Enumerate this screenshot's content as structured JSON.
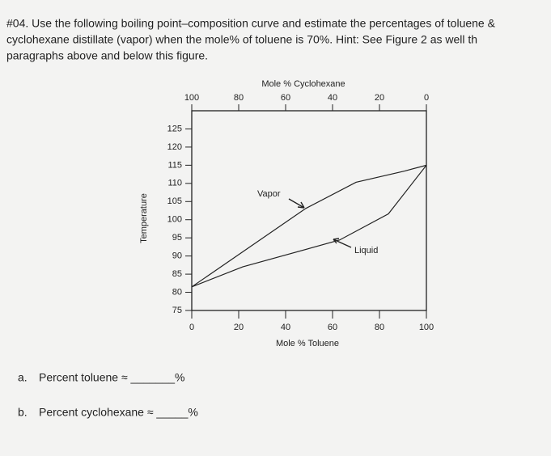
{
  "question": {
    "lines": [
      "#04. Use the following boiling point–composition curve and estimate the percentages of toluene &",
      "cyclohexane distillate (vapor) when the mole% of toluene is 70%.   Hint: See Figure 2 as well th",
      "paragraphs above and below this figure."
    ]
  },
  "chart_data": {
    "type": "line",
    "x_label": "Mole % Toluene",
    "x2_label": "Mole % Cyclohexane",
    "y_label": "Temperature",
    "xlim": [
      0,
      100
    ],
    "xticks": [
      0,
      20,
      40,
      60,
      80,
      100
    ],
    "x2lim": [
      100,
      0
    ],
    "x2ticks": [
      100,
      80,
      60,
      40,
      20,
      0
    ],
    "ylim": [
      75,
      130
    ],
    "yticks": [
      75,
      80,
      85,
      90,
      95,
      100,
      105,
      110,
      115,
      120,
      125
    ],
    "series": [
      {
        "name": "Vapor",
        "color": "#222222",
        "x": [
          0,
          9,
          48.6,
          70,
          90.7,
          100
        ],
        "values": [
          81.5,
          85.5,
          103.1,
          110.3,
          113.4,
          115
        ]
      },
      {
        "name": "Liquid",
        "color": "#222222",
        "x": [
          0,
          21.7,
          63,
          83.8,
          100
        ],
        "values": [
          81.5,
          87,
          94.4,
          101.6,
          115
        ]
      }
    ]
  },
  "answers": [
    {
      "letter": "a.",
      "text": "Percent toluene ≈ _______%"
    },
    {
      "letter": "b.",
      "text": "Percent cyclohexane ≈ _____%"
    }
  ]
}
